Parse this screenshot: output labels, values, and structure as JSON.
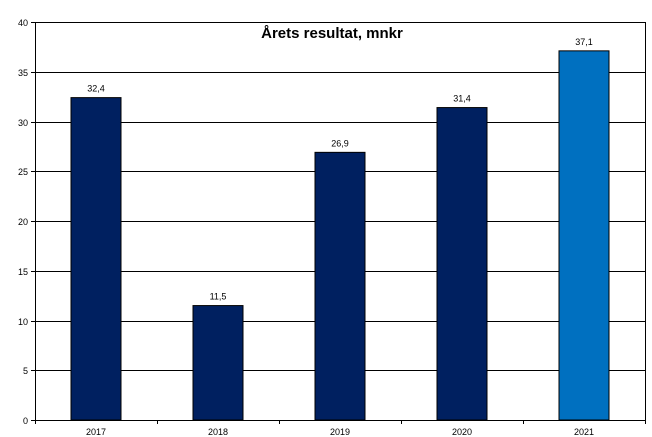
{
  "chart_data": {
    "type": "bar",
    "title": "Årets resultat, mnkr",
    "xlabel": "",
    "ylabel": "",
    "categories": [
      "2017",
      "2018",
      "2019",
      "2020",
      "2021"
    ],
    "values": [
      32.4,
      11.5,
      26.9,
      31.4,
      37.1
    ],
    "value_labels": [
      "32,4",
      "11,5",
      "26,9",
      "31,4",
      "37,1"
    ],
    "ylim": [
      0,
      40
    ],
    "yticks": [
      0,
      5,
      10,
      15,
      20,
      25,
      30,
      35,
      40
    ],
    "ytick_labels": [
      "0",
      "5",
      "10",
      "15",
      "20",
      "25",
      "30",
      "35",
      "40"
    ],
    "grid": true,
    "legend": "none",
    "colors": {
      "bar": "#002060",
      "highlight_bar": "#0070C0",
      "highlight_index": 4,
      "grid": "#000000",
      "border": "#000000"
    }
  }
}
